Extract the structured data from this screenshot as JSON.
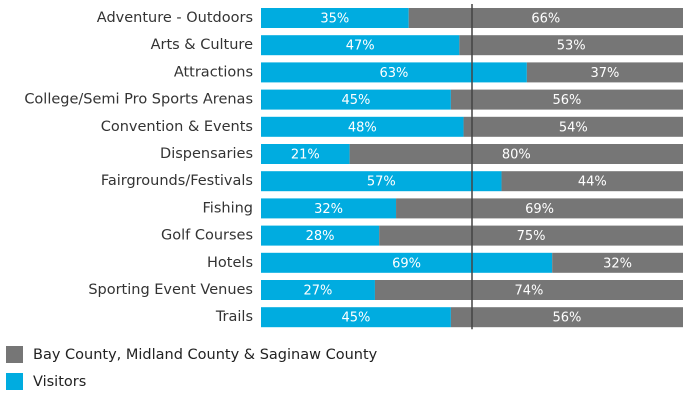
{
  "chart_data": {
    "type": "bar",
    "orientation": "horizontal",
    "stacked": true,
    "categories": [
      "Adventure - Outdoors",
      "Arts & Culture",
      "Attractions",
      "College/Semi Pro Sports Arenas",
      "Convention & Events",
      "Dispensaries",
      "Fairgrounds/Festivals",
      "Fishing",
      "Golf Courses",
      "Hotels",
      "Sporting Event Venues",
      "Trails"
    ],
    "series": [
      {
        "name": "Visitors",
        "color": "#00ace0",
        "values": [
          35,
          47,
          63,
          45,
          48,
          21,
          57,
          32,
          28,
          69,
          27,
          45
        ],
        "labels": [
          "35%",
          "47%",
          "63%",
          "45%",
          "48%",
          "21%",
          "57%",
          "32%",
          "28%",
          "69%",
          "27%",
          "45%"
        ]
      },
      {
        "name": "Bay County, Midland County & Saginaw County",
        "color": "#767676",
        "values": [
          66,
          53,
          37,
          56,
          54,
          80,
          44,
          69,
          75,
          32,
          74,
          56
        ],
        "labels": [
          "66%",
          "53%",
          "37%",
          "56%",
          "54%",
          "80%",
          "44%",
          "69%",
          "75%",
          "32%",
          "74%",
          "56%"
        ]
      }
    ],
    "reference_line": 50,
    "legend": [
      {
        "name": "Bay County, Midland County & Saginaw County",
        "color": "#767676"
      },
      {
        "name": "Visitors",
        "color": "#00ace0"
      }
    ],
    "legend_position": "bottom-left"
  }
}
